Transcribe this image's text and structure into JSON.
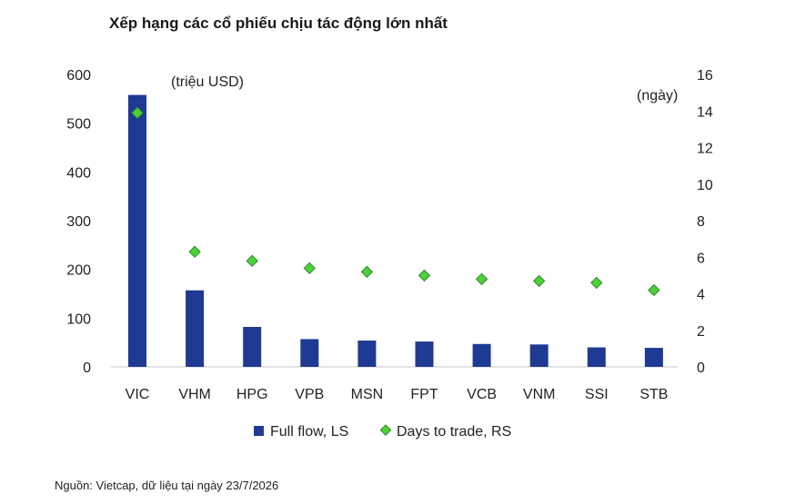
{
  "title": "Xếp hạng các cổ phiếu chịu tác động lớn nhất",
  "source": "Nguồn: Vietcap, dữ liệu tại ngày 23/7/2026",
  "colors": {
    "bar": "#1f3a93",
    "marker": "#4cd137",
    "marker_stroke": "#2e8b2e"
  },
  "chart_data": {
    "type": "bar",
    "categories": [
      "VIC",
      "VHM",
      "HPG",
      "VPB",
      "MSN",
      "FPT",
      "VCB",
      "VNM",
      "SSI",
      "STB"
    ],
    "series": [
      {
        "name": "Full flow, LS",
        "axis": "left",
        "kind": "bar",
        "values": [
          558,
          157,
          82,
          57,
          54,
          52,
          47,
          46,
          40,
          39
        ]
      },
      {
        "name": "Days to trade, RS",
        "axis": "right",
        "kind": "scatter",
        "values": [
          13.9,
          6.3,
          5.8,
          5.4,
          5.2,
          5.0,
          4.8,
          4.7,
          4.6,
          4.2
        ]
      }
    ],
    "y_left": {
      "label": "(triệu USD)",
      "min": 0,
      "max": 600,
      "ticks": [
        0,
        100,
        200,
        300,
        400,
        500,
        600
      ]
    },
    "y_right": {
      "label": "(ngày)",
      "min": 0,
      "max": 16,
      "ticks": [
        0,
        2,
        4,
        6,
        8,
        10,
        12,
        14,
        16
      ]
    },
    "legend": {
      "position": "bottom"
    },
    "grid": false
  }
}
